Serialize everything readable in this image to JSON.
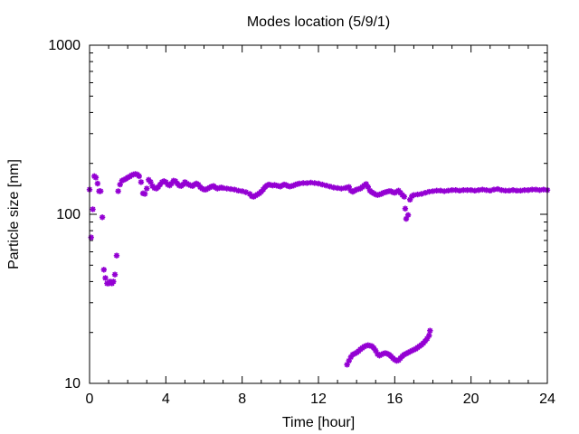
{
  "chart_data": {
    "type": "scatter",
    "title": "Modes location (5/9/1)",
    "xlabel": "Time [hour]",
    "ylabel": "Particle size [nm]",
    "xlim": [
      0,
      24
    ],
    "ylim": [
      10,
      1000
    ],
    "yscale": "log",
    "xticks": [
      0,
      4,
      8,
      12,
      16,
      20,
      24
    ],
    "xtick_labels": [
      "0",
      "4",
      "8",
      "12",
      "16",
      "20",
      "24"
    ],
    "yticks": [
      10,
      100,
      1000
    ],
    "ytick_labels": [
      "10",
      "100",
      "1000"
    ],
    "grid": false,
    "legend": "none",
    "marker_color": "#9400d3",
    "series": [
      {
        "marker": "star",
        "points": [
          [
            0.0,
            140
          ],
          [
            0.08,
            73
          ],
          [
            0.17,
            107
          ],
          [
            0.25,
            168
          ],
          [
            0.33,
            165
          ],
          [
            0.42,
            152
          ],
          [
            0.5,
            137
          ],
          [
            0.58,
            137
          ],
          [
            0.67,
            96
          ],
          [
            0.75,
            47
          ],
          [
            0.83,
            42
          ],
          [
            0.92,
            39
          ],
          [
            1.0,
            39
          ],
          [
            1.08,
            40
          ],
          [
            1.17,
            39
          ],
          [
            1.25,
            40
          ],
          [
            1.33,
            44
          ],
          [
            1.42,
            57
          ],
          [
            1.5,
            137
          ],
          [
            1.6,
            150
          ],
          [
            1.7,
            158
          ],
          [
            1.8,
            160
          ],
          [
            1.9,
            162
          ],
          [
            2.0,
            165
          ],
          [
            2.1,
            167
          ],
          [
            2.2,
            170
          ],
          [
            2.3,
            172
          ],
          [
            2.4,
            173
          ],
          [
            2.5,
            172
          ],
          [
            2.6,
            168
          ],
          [
            2.7,
            155
          ],
          [
            2.8,
            133
          ],
          [
            2.9,
            132
          ],
          [
            3.0,
            142
          ],
          [
            3.1,
            160
          ],
          [
            3.2,
            155
          ],
          [
            3.3,
            147
          ],
          [
            3.4,
            143
          ],
          [
            3.5,
            142
          ],
          [
            3.6,
            145
          ],
          [
            3.7,
            150
          ],
          [
            3.8,
            155
          ],
          [
            3.9,
            157
          ],
          [
            4.0,
            155
          ],
          [
            4.1,
            150
          ],
          [
            4.2,
            148
          ],
          [
            4.3,
            152
          ],
          [
            4.4,
            158
          ],
          [
            4.5,
            157
          ],
          [
            4.6,
            152
          ],
          [
            4.7,
            148
          ],
          [
            4.8,
            147
          ],
          [
            4.9,
            150
          ],
          [
            5.0,
            155
          ],
          [
            5.1,
            152
          ],
          [
            5.2,
            150
          ],
          [
            5.3,
            148
          ],
          [
            5.4,
            147
          ],
          [
            5.5,
            150
          ],
          [
            5.6,
            152
          ],
          [
            5.7,
            150
          ],
          [
            5.8,
            145
          ],
          [
            5.9,
            142
          ],
          [
            6.0,
            140
          ],
          [
            6.1,
            140
          ],
          [
            6.2,
            142
          ],
          [
            6.3,
            144
          ],
          [
            6.4,
            146
          ],
          [
            6.5,
            147
          ],
          [
            6.6,
            144
          ],
          [
            6.7,
            142
          ],
          [
            6.8,
            143
          ],
          [
            6.9,
            144
          ],
          [
            7.0,
            143
          ],
          [
            7.2,
            142
          ],
          [
            7.4,
            141
          ],
          [
            7.6,
            140
          ],
          [
            7.8,
            138
          ],
          [
            8.0,
            137
          ],
          [
            8.2,
            135
          ],
          [
            8.4,
            132
          ],
          [
            8.5,
            128
          ],
          [
            8.6,
            127
          ],
          [
            8.7,
            129
          ],
          [
            8.8,
            131
          ],
          [
            8.9,
            133
          ],
          [
            9.0,
            136
          ],
          [
            9.1,
            140
          ],
          [
            9.2,
            145
          ],
          [
            9.3,
            148
          ],
          [
            9.4,
            150
          ],
          [
            9.5,
            149
          ],
          [
            9.6,
            148
          ],
          [
            9.7,
            149
          ],
          [
            9.8,
            148
          ],
          [
            9.9,
            147
          ],
          [
            10.0,
            146
          ],
          [
            10.1,
            148
          ],
          [
            10.2,
            150
          ],
          [
            10.3,
            149
          ],
          [
            10.4,
            147
          ],
          [
            10.5,
            146
          ],
          [
            10.6,
            147
          ],
          [
            10.7,
            148
          ],
          [
            10.8,
            150
          ],
          [
            10.9,
            151
          ],
          [
            11.0,
            152
          ],
          [
            11.2,
            153
          ],
          [
            11.4,
            153
          ],
          [
            11.6,
            154
          ],
          [
            11.8,
            153
          ],
          [
            12.0,
            152
          ],
          [
            12.2,
            150
          ],
          [
            12.4,
            148
          ],
          [
            12.6,
            146
          ],
          [
            12.8,
            144
          ],
          [
            13.0,
            143
          ],
          [
            13.2,
            142
          ],
          [
            13.4,
            143
          ],
          [
            13.5,
            144
          ],
          [
            13.6,
            145
          ],
          [
            13.7,
            138
          ],
          [
            13.8,
            136
          ],
          [
            13.9,
            138
          ],
          [
            14.0,
            140
          ],
          [
            14.1,
            141
          ],
          [
            14.2,
            142
          ],
          [
            14.3,
            145
          ],
          [
            14.4,
            148
          ],
          [
            14.5,
            151
          ],
          [
            14.6,
            145
          ],
          [
            14.7,
            138
          ],
          [
            14.8,
            135
          ],
          [
            14.9,
            133
          ],
          [
            15.0,
            131
          ],
          [
            15.1,
            130
          ],
          [
            15.2,
            131
          ],
          [
            15.3,
            132
          ],
          [
            15.4,
            134
          ],
          [
            15.5,
            135
          ],
          [
            15.6,
            136
          ],
          [
            15.7,
            137
          ],
          [
            15.8,
            137
          ],
          [
            15.9,
            135
          ],
          [
            16.0,
            134
          ],
          [
            16.1,
            136
          ],
          [
            16.2,
            138
          ],
          [
            16.3,
            134
          ],
          [
            16.4,
            130
          ],
          [
            16.5,
            127
          ],
          [
            16.55,
            108
          ],
          [
            16.6,
            94
          ],
          [
            16.7,
            99
          ],
          [
            16.8,
            122
          ],
          [
            16.9,
            128
          ],
          [
            17.0,
            130
          ],
          [
            17.2,
            131
          ],
          [
            17.4,
            132
          ],
          [
            17.6,
            134
          ],
          [
            17.8,
            136
          ],
          [
            18.0,
            137
          ],
          [
            18.2,
            138
          ],
          [
            18.4,
            138
          ],
          [
            18.6,
            137
          ],
          [
            18.8,
            138
          ],
          [
            19.0,
            139
          ],
          [
            19.2,
            139
          ],
          [
            19.4,
            138
          ],
          [
            19.6,
            139
          ],
          [
            19.8,
            139
          ],
          [
            20.0,
            139
          ],
          [
            20.2,
            138
          ],
          [
            20.4,
            139
          ],
          [
            20.6,
            140
          ],
          [
            20.8,
            139
          ],
          [
            21.0,
            138
          ],
          [
            21.2,
            140
          ],
          [
            21.4,
            141
          ],
          [
            21.6,
            139
          ],
          [
            21.8,
            138
          ],
          [
            22.0,
            138
          ],
          [
            22.2,
            139
          ],
          [
            22.4,
            138
          ],
          [
            22.6,
            138
          ],
          [
            22.8,
            139
          ],
          [
            23.0,
            139
          ],
          [
            23.2,
            140
          ],
          [
            23.4,
            140
          ],
          [
            23.6,
            139
          ],
          [
            23.8,
            140
          ],
          [
            24.0,
            139
          ]
        ]
      },
      {
        "marker": "star",
        "points": [
          [
            13.5,
            12.9
          ],
          [
            13.6,
            13.6
          ],
          [
            13.7,
            14.3
          ],
          [
            13.8,
            14.8
          ],
          [
            13.9,
            15.0
          ],
          [
            14.0,
            15.2
          ],
          [
            14.1,
            15.5
          ],
          [
            14.2,
            15.9
          ],
          [
            14.3,
            16.2
          ],
          [
            14.4,
            16.5
          ],
          [
            14.5,
            16.7
          ],
          [
            14.6,
            16.8
          ],
          [
            14.7,
            16.7
          ],
          [
            14.8,
            16.6
          ],
          [
            14.9,
            16.2
          ],
          [
            15.0,
            15.6
          ],
          [
            15.1,
            14.9
          ],
          [
            15.2,
            14.6
          ],
          [
            15.3,
            14.8
          ],
          [
            15.4,
            15.0
          ],
          [
            15.5,
            15.1
          ],
          [
            15.6,
            15.0
          ],
          [
            15.7,
            14.8
          ],
          [
            15.8,
            14.5
          ],
          [
            15.9,
            14.1
          ],
          [
            16.0,
            13.8
          ],
          [
            16.1,
            13.6
          ],
          [
            16.2,
            13.7
          ],
          [
            16.3,
            14.1
          ],
          [
            16.4,
            14.5
          ],
          [
            16.5,
            14.8
          ],
          [
            16.6,
            15.0
          ],
          [
            16.7,
            15.2
          ],
          [
            16.8,
            15.4
          ],
          [
            16.9,
            15.6
          ],
          [
            17.0,
            15.8
          ],
          [
            17.1,
            16.0
          ],
          [
            17.2,
            16.3
          ],
          [
            17.3,
            16.6
          ],
          [
            17.4,
            16.9
          ],
          [
            17.5,
            17.3
          ],
          [
            17.6,
            17.8
          ],
          [
            17.7,
            18.4
          ],
          [
            17.8,
            19.2
          ],
          [
            17.85,
            20.5
          ]
        ]
      }
    ]
  }
}
